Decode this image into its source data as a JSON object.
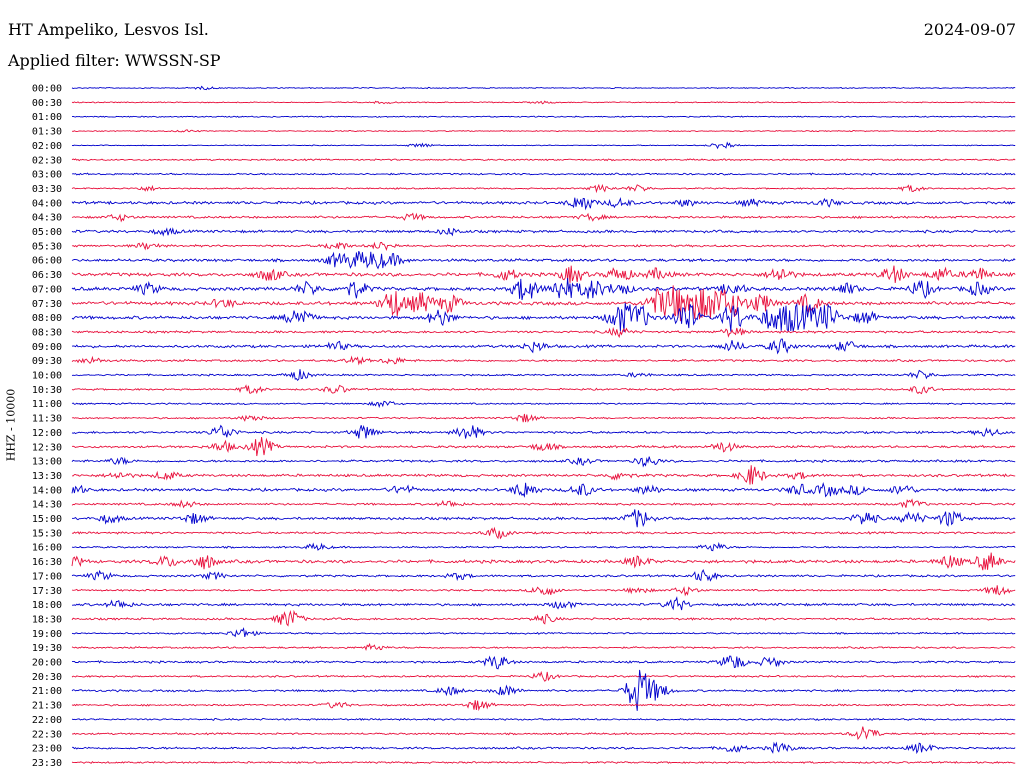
{
  "header": {
    "station": "HT Ampeliko, Lesvos Isl.",
    "date": "2024-09-07",
    "filter": "Applied filter: WWSSN-SP"
  },
  "chart_data": {
    "type": "line",
    "title": "HT Ampeliko, Lesvos Isl.",
    "subtitle": "Applied filter: WWSSN-SP",
    "ylabel": "HHZ - 10000",
    "xlabel": "",
    "grid": false,
    "colors": {
      "even": "#0000cc",
      "odd": "#e8103c"
    },
    "rows": [
      {
        "label": "00:00",
        "amp": 0.6,
        "events": [
          [
            0.14,
            1.2
          ]
        ]
      },
      {
        "label": "00:30",
        "amp": 0.6,
        "events": [
          [
            0.33,
            1
          ],
          [
            0.5,
            1
          ]
        ]
      },
      {
        "label": "01:00",
        "amp": 0.7,
        "events": []
      },
      {
        "label": "01:30",
        "amp": 0.6,
        "events": [
          [
            0.12,
            1
          ]
        ]
      },
      {
        "label": "02:00",
        "amp": 0.5,
        "events": [
          [
            0.37,
            2
          ],
          [
            0.69,
            4
          ]
        ]
      },
      {
        "label": "02:30",
        "amp": 0.9,
        "events": []
      },
      {
        "label": "03:00",
        "amp": 1.0,
        "events": []
      },
      {
        "label": "03:30",
        "amp": 0.8,
        "events": [
          [
            0.08,
            2
          ],
          [
            0.56,
            3
          ],
          [
            0.6,
            3
          ],
          [
            0.89,
            3
          ]
        ]
      },
      {
        "label": "04:00",
        "amp": 1.6,
        "events": [
          [
            0.54,
            8
          ],
          [
            0.58,
            4
          ],
          [
            0.65,
            3
          ],
          [
            0.72,
            3
          ],
          [
            0.8,
            3
          ]
        ]
      },
      {
        "label": "04:30",
        "amp": 1.3,
        "events": [
          [
            0.05,
            3
          ],
          [
            0.36,
            3
          ],
          [
            0.55,
            3
          ]
        ]
      },
      {
        "label": "05:00",
        "amp": 1.5,
        "events": [
          [
            0.1,
            3
          ],
          [
            0.4,
            3
          ]
        ]
      },
      {
        "label": "05:30",
        "amp": 1.2,
        "events": [
          [
            0.08,
            3
          ],
          [
            0.28,
            4
          ],
          [
            0.33,
            4
          ]
        ]
      },
      {
        "label": "06:00",
        "amp": 1.6,
        "events": [
          [
            0.28,
            6
          ],
          [
            0.3,
            7
          ],
          [
            0.32,
            8
          ],
          [
            0.34,
            5
          ]
        ]
      },
      {
        "label": "06:30",
        "amp": 2.0,
        "events": [
          [
            0.21,
            6
          ],
          [
            0.46,
            5
          ],
          [
            0.53,
            8
          ],
          [
            0.58,
            7
          ],
          [
            0.62,
            5
          ],
          [
            0.75,
            7
          ],
          [
            0.87,
            8
          ],
          [
            0.92,
            6
          ],
          [
            0.96,
            6
          ]
        ]
      },
      {
        "label": "07:00",
        "amp": 2.0,
        "events": [
          [
            0.08,
            5
          ],
          [
            0.25,
            6
          ],
          [
            0.3,
            8
          ],
          [
            0.48,
            12
          ],
          [
            0.52,
            12
          ],
          [
            0.55,
            10
          ],
          [
            0.58,
            6
          ],
          [
            0.7,
            6
          ],
          [
            0.82,
            5
          ],
          [
            0.9,
            8
          ],
          [
            0.96,
            6
          ]
        ]
      },
      {
        "label": "07:30",
        "amp": 2.0,
        "events": [
          [
            0.16,
            4
          ],
          [
            0.34,
            14
          ],
          [
            0.37,
            10
          ],
          [
            0.4,
            8
          ],
          [
            0.62,
            12
          ],
          [
            0.64,
            16
          ],
          [
            0.66,
            14
          ],
          [
            0.68,
            15
          ],
          [
            0.7,
            12
          ],
          [
            0.73,
            9
          ],
          [
            0.78,
            8
          ]
        ]
      },
      {
        "label": "08:00",
        "amp": 1.8,
        "events": [
          [
            0.24,
            10
          ],
          [
            0.39,
            8
          ],
          [
            0.58,
            14
          ],
          [
            0.6,
            12
          ],
          [
            0.65,
            16
          ],
          [
            0.7,
            14
          ],
          [
            0.74,
            10
          ],
          [
            0.76,
            14
          ],
          [
            0.78,
            10
          ],
          [
            0.8,
            12
          ],
          [
            0.84,
            6
          ]
        ]
      },
      {
        "label": "08:30",
        "amp": 1.3,
        "events": [
          [
            0.58,
            4
          ],
          [
            0.7,
            4
          ]
        ]
      },
      {
        "label": "09:00",
        "amp": 1.5,
        "events": [
          [
            0.28,
            4
          ],
          [
            0.49,
            5
          ],
          [
            0.7,
            5
          ],
          [
            0.75,
            7
          ],
          [
            0.82,
            5
          ]
        ]
      },
      {
        "label": "09:30",
        "amp": 1.2,
        "events": [
          [
            0.02,
            3
          ],
          [
            0.3,
            3
          ],
          [
            0.34,
            3
          ]
        ]
      },
      {
        "label": "10:00",
        "amp": 1.0,
        "events": [
          [
            0.24,
            5
          ],
          [
            0.6,
            2
          ],
          [
            0.9,
            4
          ]
        ]
      },
      {
        "label": "10:30",
        "amp": 1.0,
        "events": [
          [
            0.19,
            4
          ],
          [
            0.28,
            4
          ],
          [
            0.9,
            4
          ]
        ]
      },
      {
        "label": "11:00",
        "amp": 0.9,
        "events": [
          [
            0.33,
            3
          ]
        ]
      },
      {
        "label": "11:30",
        "amp": 0.9,
        "events": [
          [
            0.19,
            3
          ],
          [
            0.48,
            4
          ]
        ]
      },
      {
        "label": "12:00",
        "amp": 1.3,
        "events": [
          [
            0.16,
            7
          ],
          [
            0.31,
            7
          ],
          [
            0.42,
            8
          ],
          [
            0.97,
            4
          ]
        ]
      },
      {
        "label": "12:30",
        "amp": 1.3,
        "events": [
          [
            0.16,
            5
          ],
          [
            0.2,
            9
          ],
          [
            0.5,
            4
          ],
          [
            0.69,
            5
          ]
        ]
      },
      {
        "label": "13:00",
        "amp": 1.3,
        "events": [
          [
            0.05,
            3
          ],
          [
            0.54,
            3
          ],
          [
            0.61,
            5
          ]
        ]
      },
      {
        "label": "13:30",
        "amp": 1.5,
        "events": [
          [
            0.05,
            3
          ],
          [
            0.1,
            4
          ],
          [
            0.58,
            4
          ],
          [
            0.72,
            10
          ],
          [
            0.77,
            3
          ]
        ]
      },
      {
        "label": "14:00",
        "amp": 1.6,
        "events": [
          [
            0.0,
            6
          ],
          [
            0.35,
            4
          ],
          [
            0.48,
            8
          ],
          [
            0.54,
            6
          ],
          [
            0.61,
            4
          ],
          [
            0.77,
            5
          ],
          [
            0.8,
            6
          ],
          [
            0.83,
            4
          ],
          [
            0.88,
            5
          ]
        ]
      },
      {
        "label": "14:30",
        "amp": 1.2,
        "events": [
          [
            0.12,
            3
          ],
          [
            0.4,
            3
          ],
          [
            0.89,
            4
          ]
        ]
      },
      {
        "label": "15:00",
        "amp": 1.5,
        "events": [
          [
            0.04,
            4
          ],
          [
            0.13,
            5
          ],
          [
            0.6,
            9
          ],
          [
            0.84,
            7
          ],
          [
            0.89,
            6
          ],
          [
            0.93,
            8
          ]
        ]
      },
      {
        "label": "15:30",
        "amp": 1.2,
        "events": [
          [
            0.45,
            5
          ]
        ]
      },
      {
        "label": "16:00",
        "amp": 1.0,
        "events": [
          [
            0.26,
            3
          ],
          [
            0.68,
            4
          ]
        ]
      },
      {
        "label": "16:30",
        "amp": 1.8,
        "events": [
          [
            0.0,
            5
          ],
          [
            0.1,
            5
          ],
          [
            0.14,
            7
          ],
          [
            0.6,
            5
          ],
          [
            0.93,
            6
          ],
          [
            0.97,
            9
          ]
        ]
      },
      {
        "label": "17:00",
        "amp": 1.2,
        "events": [
          [
            0.03,
            4
          ],
          [
            0.15,
            3
          ],
          [
            0.41,
            3
          ],
          [
            0.67,
            6
          ]
        ]
      },
      {
        "label": "17:30",
        "amp": 1.0,
        "events": [
          [
            0.5,
            6
          ],
          [
            0.6,
            3
          ],
          [
            0.65,
            4
          ],
          [
            0.98,
            5
          ]
        ]
      },
      {
        "label": "18:00",
        "amp": 1.4,
        "events": [
          [
            0.05,
            4
          ],
          [
            0.52,
            4
          ],
          [
            0.64,
            6
          ]
        ]
      },
      {
        "label": "18:30",
        "amp": 1.2,
        "events": [
          [
            0.23,
            9
          ],
          [
            0.5,
            4
          ]
        ]
      },
      {
        "label": "19:00",
        "amp": 0.9,
        "events": [
          [
            0.18,
            5
          ]
        ]
      },
      {
        "label": "19:30",
        "amp": 1.0,
        "events": [
          [
            0.32,
            3
          ]
        ]
      },
      {
        "label": "20:00",
        "amp": 1.2,
        "events": [
          [
            0.45,
            7
          ],
          [
            0.7,
            8
          ],
          [
            0.74,
            5
          ]
        ]
      },
      {
        "label": "20:30",
        "amp": 1.0,
        "events": [
          [
            0.5,
            4
          ]
        ]
      },
      {
        "label": "21:00",
        "amp": 1.2,
        "events": [
          [
            0.4,
            4
          ],
          [
            0.46,
            5
          ],
          [
            0.6,
            22
          ],
          [
            0.62,
            8
          ]
        ]
      },
      {
        "label": "21:30",
        "amp": 1.0,
        "events": [
          [
            0.28,
            3
          ],
          [
            0.43,
            5
          ]
        ]
      },
      {
        "label": "22:00",
        "amp": 1.0,
        "events": []
      },
      {
        "label": "22:30",
        "amp": 1.0,
        "events": [
          [
            0.84,
            8
          ]
        ]
      },
      {
        "label": "23:00",
        "amp": 1.2,
        "events": [
          [
            0.7,
            4
          ],
          [
            0.75,
            5
          ],
          [
            0.9,
            5
          ]
        ]
      },
      {
        "label": "23:30",
        "amp": 1.0,
        "events": []
      }
    ]
  }
}
